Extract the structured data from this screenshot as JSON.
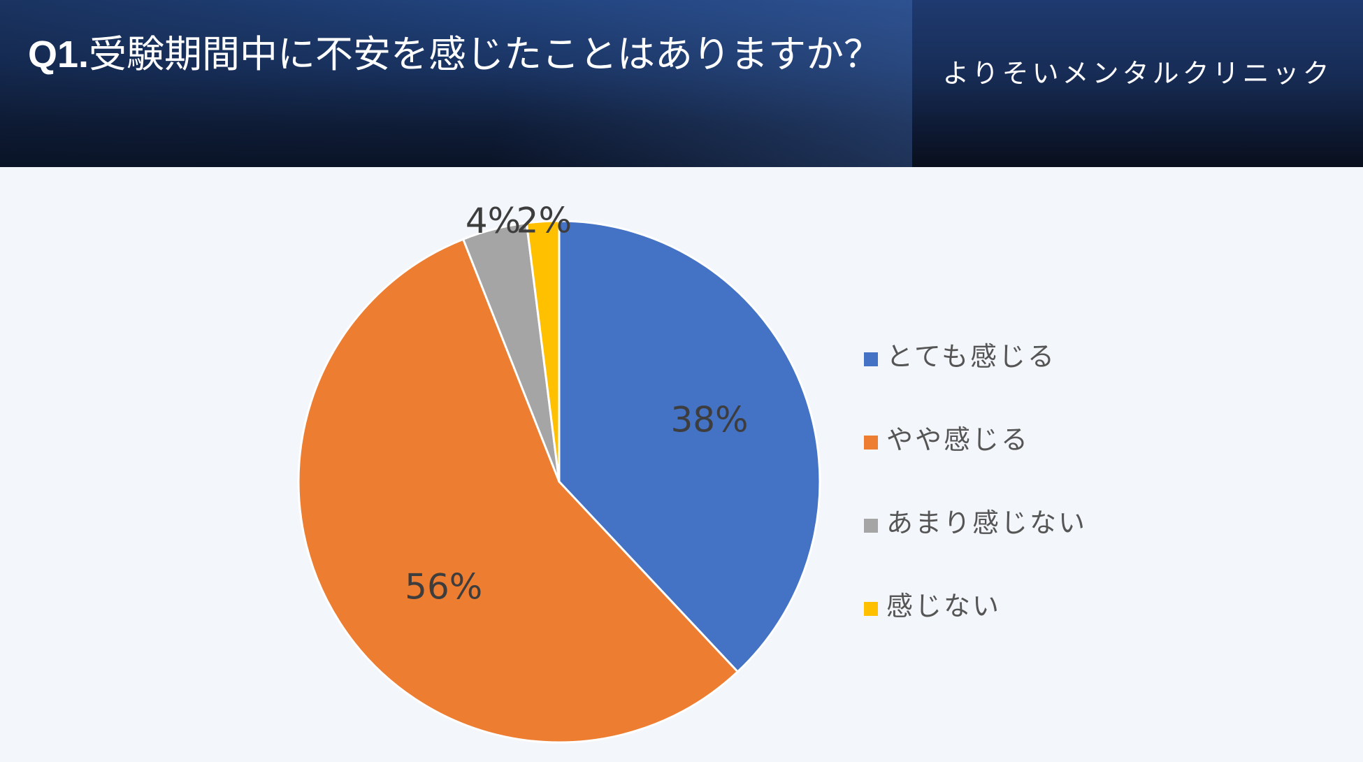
{
  "header": {
    "title_prefix": "Q1.",
    "title_text": "受験期間中に不安を感じたことはありますか？",
    "clinic": "よりそいメンタルクリニック"
  },
  "chart_data": {
    "type": "pie",
    "title": "",
    "categories": [
      "とても感じる",
      "やや感じる",
      "あまり感じない",
      "感じない"
    ],
    "values": [
      38,
      56,
      4,
      2
    ],
    "labels": [
      "38%",
      "56%",
      "4%",
      "2%"
    ],
    "colors": [
      "#4472c4",
      "#ed7d31",
      "#a5a5a5",
      "#ffc000"
    ],
    "start_angle_deg": 0,
    "direction": "clockwise",
    "legend_position": "right"
  }
}
